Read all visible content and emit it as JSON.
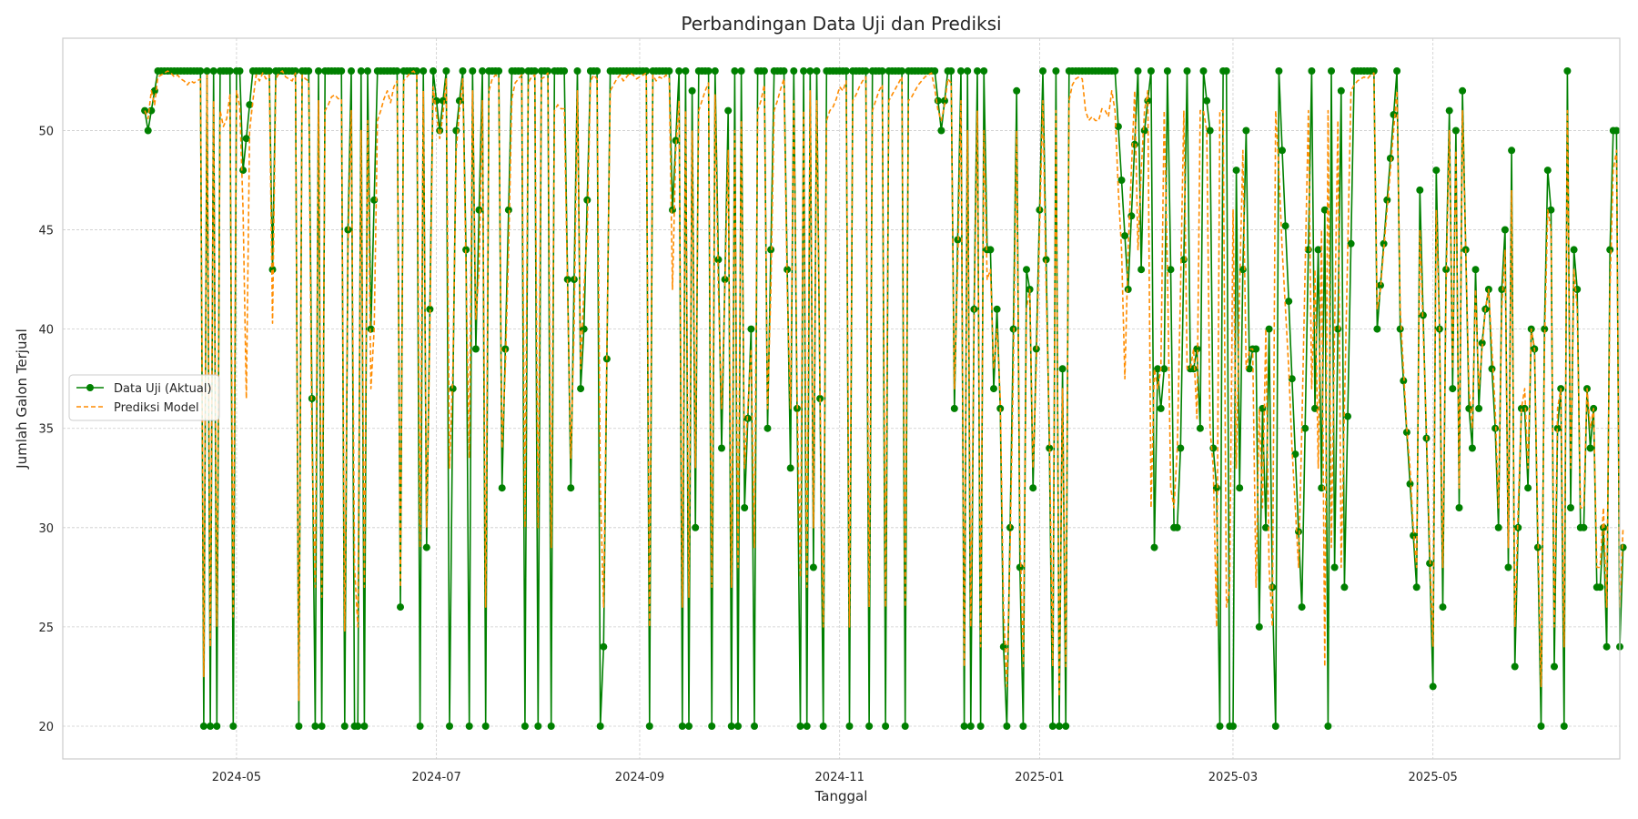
{
  "chart_data": {
    "type": "line",
    "title": "Perbandingan Data Uji dan Prediksi",
    "xlabel": "Tanggal",
    "ylabel": "Jumlah Galon Terjual",
    "ylim": [
      18.35,
      54.65
    ],
    "xlim": [
      "2024-03-09",
      "2025-06-27"
    ],
    "x_ticks": [
      "2024-05",
      "2024-07",
      "2024-09",
      "2024-11",
      "2025-01",
      "2025-03",
      "2025-05"
    ],
    "y_ticks": [
      20,
      25,
      30,
      35,
      40,
      45,
      50
    ],
    "grid": true,
    "legend_position": "center-left",
    "start_date": "2024-04-03",
    "series": [
      {
        "name": "Data Uji (Aktual)",
        "color": "#008000",
        "style": "solid-with-markers",
        "values": [
          51,
          50,
          51,
          52,
          53,
          53,
          53,
          53,
          53,
          53,
          53,
          53,
          53,
          53,
          53,
          53,
          53,
          53,
          20,
          53,
          20,
          53,
          20,
          53,
          53,
          53,
          53,
          20,
          53,
          53,
          48,
          49.6,
          51.3,
          53,
          53,
          53,
          53,
          53,
          53,
          43,
          53,
          53,
          53,
          53,
          53,
          53,
          53,
          20,
          53,
          53,
          53,
          36.5,
          20,
          53,
          20,
          53,
          53,
          53,
          53,
          53,
          53,
          20,
          45,
          53,
          20,
          20,
          53,
          20,
          53,
          40,
          46.5,
          53,
          53,
          53,
          53,
          53,
          53,
          53,
          26,
          53,
          53,
          53,
          53,
          53,
          20,
          53,
          29,
          41,
          53,
          51.5,
          50,
          51.5,
          53,
          20,
          37,
          50,
          51.5,
          53,
          44,
          20,
          53,
          39,
          46,
          53,
          20,
          53,
          53,
          53,
          53,
          32,
          39,
          46,
          53,
          53,
          53,
          53,
          20,
          53,
          53,
          53,
          20,
          53,
          53,
          53,
          20,
          53,
          53,
          53,
          53,
          42.5,
          32,
          42.5,
          53,
          37,
          40,
          46.5,
          53,
          53,
          53,
          20,
          24,
          38.5,
          53,
          53,
          53,
          53,
          53,
          53,
          53,
          53,
          53,
          53,
          53,
          53,
          20,
          53,
          53,
          53,
          53,
          53,
          53,
          46,
          49.5,
          53,
          20,
          53,
          20,
          52,
          30,
          53,
          53,
          53,
          53,
          20,
          53,
          43.5,
          34,
          42.5,
          51,
          20,
          53,
          20,
          53,
          31,
          35.5,
          40,
          20,
          53,
          53,
          53,
          35,
          44,
          53,
          53,
          53,
          53,
          43,
          33,
          53,
          36,
          20,
          53,
          20,
          53,
          28,
          53,
          36.5,
          20,
          53,
          53,
          53,
          53,
          53,
          53,
          53,
          20,
          53,
          53,
          53,
          53,
          53,
          20,
          53,
          53,
          53,
          53,
          20,
          53,
          53,
          53,
          53,
          53,
          20,
          53,
          53,
          53,
          53,
          53,
          53,
          53,
          53,
          53,
          51.5,
          50,
          51.5,
          53,
          53,
          36,
          44.5,
          53,
          20,
          53,
          20,
          41,
          53,
          20,
          53,
          44,
          44,
          37,
          41,
          36,
          24,
          20,
          30,
          40,
          52,
          28,
          20,
          43,
          42,
          32,
          39,
          46,
          53,
          43.5,
          34,
          20,
          53,
          20,
          38,
          20,
          53,
          53,
          53,
          53,
          53,
          53,
          53,
          53,
          53,
          53,
          53,
          53,
          53,
          53,
          53,
          50.2,
          47.5,
          44.7,
          42,
          45.7,
          49.3,
          53,
          43,
          50,
          51.5,
          53,
          29,
          38,
          36,
          38,
          53,
          43,
          30,
          30,
          34,
          43.5,
          53,
          38,
          38,
          39,
          35,
          53,
          51.5,
          50,
          34,
          32,
          20,
          53,
          53,
          20,
          20,
          48,
          32,
          43,
          50,
          38,
          39,
          39,
          25,
          36,
          30,
          40,
          27,
          20,
          53,
          49,
          45.2,
          41.4,
          37.5,
          33.7,
          29.8,
          26,
          35,
          44,
          53,
          36,
          44,
          32,
          46,
          20,
          53,
          28,
          40,
          52,
          27,
          35.6,
          44.3,
          53,
          53,
          53,
          53,
          53,
          53,
          53,
          40,
          42.2,
          44.3,
          46.5,
          48.6,
          50.8,
          53,
          40,
          37.4,
          34.8,
          32.2,
          29.6,
          27,
          47,
          40.7,
          34.5,
          28.2,
          22,
          48,
          40,
          26,
          43,
          51,
          37,
          50,
          31,
          52,
          44,
          36,
          34,
          43,
          36,
          39.3,
          41,
          42,
          38,
          35,
          30,
          42,
          45,
          28,
          49,
          23,
          30,
          36,
          36,
          32,
          40,
          39,
          29,
          20,
          40,
          48,
          46,
          23,
          35,
          37,
          20,
          53,
          31,
          44,
          42,
          30,
          30,
          37,
          34,
          36,
          27,
          27,
          30,
          24,
          44,
          50,
          50,
          24,
          29
        ]
      },
      {
        "name": "Prediksi Model",
        "color": "#ff8c00",
        "style": "dashed",
        "values": [
          51,
          50.6,
          52,
          51.3,
          52.7,
          52.8,
          52.9,
          53,
          52.9,
          52.7,
          52.8,
          52.6,
          52.5,
          52.3,
          52.5,
          52.4,
          52.5,
          52.6,
          22.5,
          52.8,
          24,
          51.5,
          25,
          51,
          50.2,
          50.6,
          51.8,
          25.5,
          52,
          51.2,
          46,
          36.5,
          50,
          51.5,
          52.8,
          52.5,
          52.9,
          52.6,
          52.8,
          40.3,
          52.6,
          52.9,
          53,
          52.7,
          52.6,
          52.5,
          52.9,
          21.3,
          52.8,
          52.6,
          52.5,
          34,
          27,
          51.5,
          26.5,
          51,
          51.3,
          51.7,
          51.8,
          51.6,
          51.6,
          24.8,
          44,
          51,
          28,
          25,
          50,
          27,
          50.5,
          37,
          40,
          50.5,
          51,
          51.6,
          52,
          51.4,
          52.2,
          52.5,
          27,
          52.5,
          52.7,
          52.9,
          53,
          52.8,
          29,
          52,
          30,
          40,
          52.2,
          50.8,
          49.6,
          50.8,
          52.6,
          33,
          38,
          49,
          51,
          52.6,
          43,
          33.5,
          52,
          40.5,
          43,
          51.5,
          26,
          52,
          52.6,
          52.8,
          52.7,
          34,
          38,
          44,
          51.6,
          52.4,
          52.6,
          52.8,
          30,
          52.4,
          52.7,
          52.8,
          30,
          52.6,
          52.7,
          52.9,
          29,
          51,
          51.3,
          51.1,
          51.1,
          42,
          33.5,
          40,
          52,
          38,
          42,
          45,
          52.5,
          52.8,
          52.6,
          32,
          26,
          39,
          52,
          52.3,
          52.6,
          52.8,
          52.5,
          52.7,
          52.9,
          52.8,
          52.6,
          52.7,
          52.8,
          52.9,
          25,
          52.8,
          52.5,
          52.7,
          52.6,
          52.8,
          52.6,
          42,
          49,
          51.5,
          26,
          51,
          26.5,
          50,
          33,
          51,
          51.5,
          52,
          52.4,
          27,
          51.8,
          42,
          36,
          42,
          49,
          27,
          50,
          28,
          50.5,
          33,
          36,
          39,
          29,
          51,
          51.5,
          52.3,
          36,
          42,
          51,
          51.5,
          52.1,
          52.6,
          42,
          36,
          51.5,
          37,
          27.5,
          51,
          27,
          52,
          30,
          51.5,
          37,
          25,
          50.5,
          51,
          51.2,
          51.6,
          52.2,
          52,
          52.5,
          25,
          51.5,
          51.8,
          52.2,
          52.5,
          52.7,
          26,
          51,
          51.5,
          52,
          52.3,
          26,
          51.5,
          51.8,
          52.1,
          52.4,
          52.7,
          26,
          51.5,
          51.7,
          52,
          52.3,
          52.5,
          52.7,
          52.8,
          52.9,
          52.1,
          51,
          50.5,
          51.3,
          52.6,
          52.4,
          37,
          43,
          51.5,
          23,
          50,
          25,
          40,
          51,
          24,
          50,
          42.5,
          43,
          38,
          40,
          36.5,
          26,
          22,
          29,
          38,
          50,
          30,
          23,
          41,
          42,
          33,
          38,
          45,
          51.5,
          42,
          35,
          23,
          51,
          21.5,
          37,
          23,
          51.5,
          52.3,
          52.6,
          52.7,
          52.6,
          51,
          50.5,
          50.7,
          50.5,
          50.5,
          51.1,
          51,
          50.7,
          52,
          51,
          47,
          44,
          37.5,
          44,
          48,
          52,
          44,
          48,
          51,
          52,
          31,
          38,
          37,
          38,
          51,
          43,
          32,
          31,
          34,
          42,
          51,
          38,
          38,
          39,
          35.5,
          51,
          51,
          50,
          35,
          33,
          25,
          51,
          51,
          26,
          27,
          46,
          33,
          42,
          49,
          38,
          39,
          39,
          27,
          36,
          31,
          40,
          28,
          25,
          51,
          48,
          44,
          41,
          38,
          34,
          31,
          28,
          35,
          43,
          51,
          37,
          43,
          33,
          45,
          23,
          51,
          29,
          40,
          50.5,
          28,
          36,
          44,
          52,
          52.3,
          52.5,
          52.6,
          52.7,
          52.6,
          52.8,
          52.9,
          41,
          42,
          44,
          46,
          48,
          50,
          52,
          41,
          38,
          35,
          33,
          30,
          28,
          45,
          40,
          35,
          29,
          24,
          46,
          40,
          28,
          42,
          50,
          38,
          49,
          32,
          51,
          44,
          37,
          35,
          42,
          37,
          39,
          41,
          42,
          39,
          36,
          31,
          41,
          44,
          29,
          47,
          25,
          31,
          36,
          37,
          33,
          40,
          39,
          30,
          22,
          39,
          46,
          45,
          25,
          36,
          37,
          24,
          51,
          33,
          43,
          41,
          31,
          31,
          37,
          35,
          36,
          28,
          28,
          31,
          26,
          42,
          48,
          49,
          26,
          30
        ]
      }
    ]
  }
}
